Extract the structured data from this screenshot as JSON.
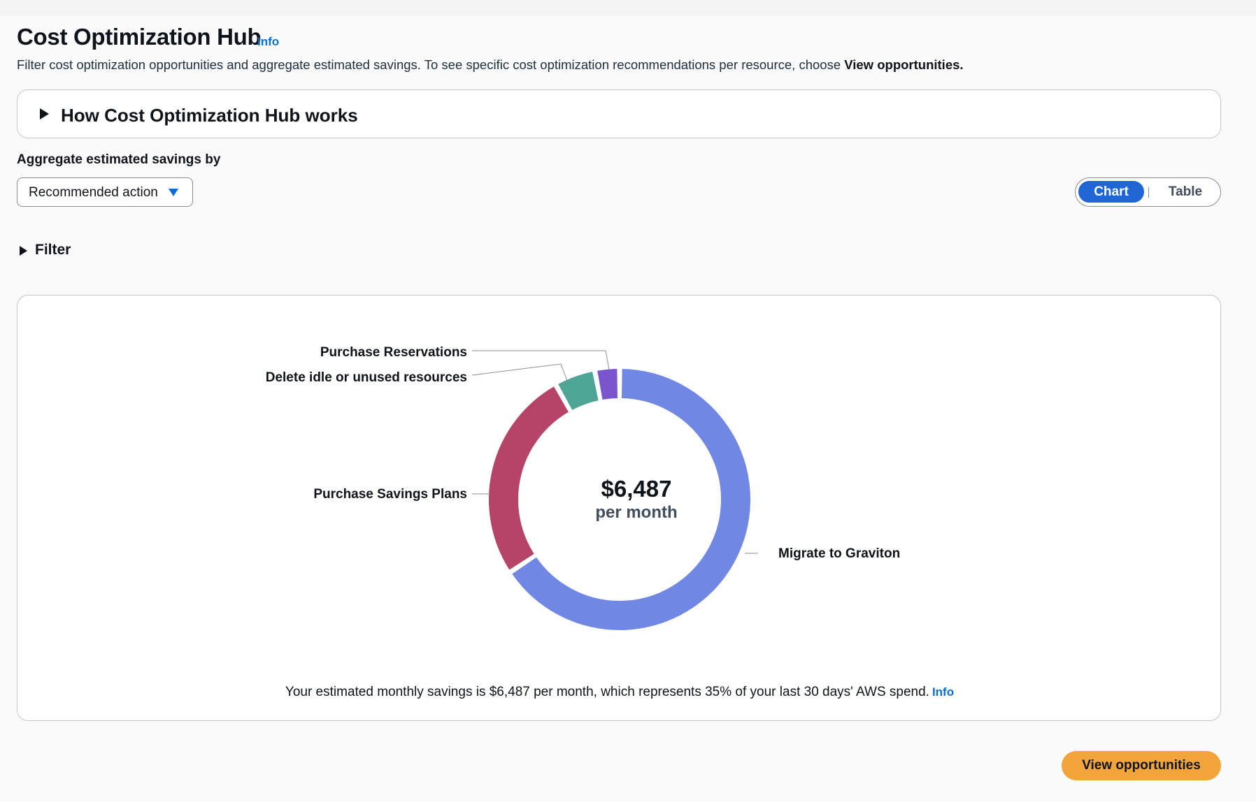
{
  "page": {
    "title": "Cost Optimization Hub",
    "title_info": "Info",
    "description_prefix": "Filter cost optimization opportunities and aggregate estimated savings. To see specific cost optimization recommendations per resource, choose ",
    "description_bold": "View opportunities."
  },
  "how_it_works": {
    "label": "How Cost Optimization Hub works",
    "expanded": false
  },
  "aggregate": {
    "label": "Aggregate estimated savings by",
    "selected": "Recommended action"
  },
  "view_toggle": {
    "options": [
      "Chart",
      "Table"
    ],
    "selected": "Chart"
  },
  "filter": {
    "label": "Filter",
    "expanded": false
  },
  "chart_data": {
    "type": "pie",
    "variant": "donut",
    "center_value": "$6,487",
    "center_unit": "per month",
    "series": [
      {
        "name": "Migrate to Graviton",
        "value": 0.65,
        "color": "#7088e3"
      },
      {
        "name": "Purchase Savings Plans",
        "value": 0.26,
        "color": "#b54467"
      },
      {
        "name": "Delete idle or unused resources",
        "value": 0.05,
        "color": "#4fa595"
      },
      {
        "name": "Purchase Reservations",
        "value": 0.03,
        "color": "#7a55ce"
      }
    ],
    "legend": "none"
  },
  "summary": {
    "text": "Your estimated monthly savings is $6,487 per month, which represents 35% of your last 30 days' AWS spend.",
    "info": "Info"
  },
  "actions": {
    "view_opportunities": "View opportunities"
  }
}
